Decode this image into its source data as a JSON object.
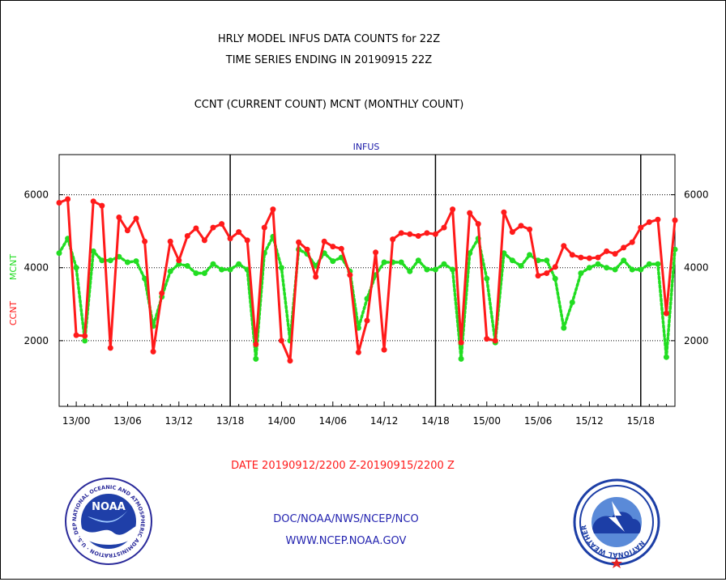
{
  "chart_data": {
    "type": "line",
    "title": "HRLY MODEL INFUS DATA COUNTS for 22Z",
    "subtitle": "TIME SERIES ENDING IN 20190915 22Z",
    "description": "CCNT (CURRENT COUNT) MCNT (MONTHLY COUNT)",
    "panel_label": "INFUS",
    "xlabel": "DATE 20190912/2200 Z-20190915/2200 Z",
    "ylabel_series": [
      "CCNT",
      "MCNT"
    ],
    "ylim": [
      200,
      7100
    ],
    "yticks": [
      2000,
      4000,
      6000
    ],
    "xlim": [
      0,
      72
    ],
    "x_tick_labels": [
      "13/00",
      "13/06",
      "13/12",
      "13/18",
      "14/00",
      "14/06",
      "14/12",
      "14/18",
      "15/00",
      "15/06",
      "15/12",
      "15/18"
    ],
    "x_tick_hours": [
      2,
      8,
      14,
      20,
      26,
      32,
      38,
      44,
      50,
      56,
      62,
      68
    ],
    "day_boundaries_hours": [
      20,
      44,
      68
    ],
    "grid": "horizontal dotted at y ticks",
    "series": [
      {
        "name": "CCNT",
        "color": "#ff1a1a",
        "style": "solid-markers",
        "values": [
          5780,
          5880,
          2150,
          2130,
          5820,
          5700,
          1800,
          5380,
          5020,
          5350,
          4720,
          1700,
          3300,
          4720,
          4200,
          4870,
          5080,
          4750,
          5100,
          5200,
          4800,
          4980,
          4750,
          1900,
          5100,
          5600,
          2000,
          1450,
          4700,
          4500,
          3750,
          4720,
          4580,
          4520,
          3800,
          1680,
          2550,
          4420,
          1750,
          4780,
          4950,
          4920,
          4870,
          4950,
          4920,
          5100,
          5600,
          1950,
          5500,
          5200,
          2050,
          2000,
          5520,
          4980,
          5150,
          5050,
          3780,
          3850,
          4020,
          4600,
          4350,
          4280,
          4260,
          4280,
          4450,
          4380,
          4550,
          4700,
          5100,
          5250,
          5320,
          2750,
          5300
        ]
      },
      {
        "name": "MCNT",
        "color": "#22dd22",
        "style": "dotted-markers",
        "values": [
          4400,
          4800,
          4000,
          2000,
          4450,
          4200,
          4200,
          4300,
          4150,
          4180,
          3700,
          2400,
          3200,
          3900,
          4100,
          4050,
          3850,
          3850,
          4100,
          3950,
          3950,
          4100,
          3950,
          1500,
          4400,
          4850,
          4000,
          2000,
          4500,
          4380,
          4050,
          4400,
          4180,
          4280,
          3900,
          2350,
          3150,
          3800,
          4150,
          4150,
          4150,
          3900,
          4200,
          3950,
          3950,
          4100,
          3950,
          1500,
          4400,
          4800,
          3700,
          1950,
          4400,
          4200,
          4050,
          4350,
          4200,
          4200,
          3700,
          2350,
          3050,
          3850,
          4000,
          4100,
          4000,
          3950,
          4200,
          3950,
          3950,
          4100,
          4100,
          1550,
          4500
        ]
      }
    ]
  },
  "footer": {
    "org_line": "DOC/NOAA/NWS/NCEP/NCO",
    "url_line": "WWW.NCEP.NOAA.GOV"
  },
  "logos": {
    "left": {
      "name": "noaa-logo",
      "center_text": "NOAA",
      "ring_text": "NATIONAL OCEANIC AND ATMOSPHERIC ADMINISTRATION · U.S. DEPARTMENT OF COMMERCE ·"
    },
    "right": {
      "name": "nws-logo",
      "ring_text": "NATIONAL WEATHER SERVICE"
    }
  },
  "colors": {
    "title": "#000000",
    "panel_label": "#1a1aa8",
    "xlabel": "#ff1a1a",
    "footer": "#2424b0",
    "ccnt": "#ff1a1a",
    "mcnt": "#22dd22"
  }
}
